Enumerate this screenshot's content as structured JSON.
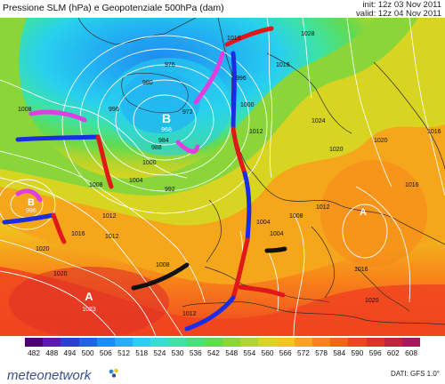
{
  "header": {
    "title": "Pressione SLM (hPa) e Geopotenziale 500hPa (dam)",
    "init": "init: 12z 03 Nov 2011",
    "valid": "valid: 12z 04 Nov 2011"
  },
  "map": {
    "centers": [
      {
        "letter": "B",
        "value": "968",
        "type": "low"
      },
      {
        "letter": "B",
        "value": "996",
        "type": "low"
      },
      {
        "letter": "A",
        "value": "1023",
        "type": "high"
      },
      {
        "letter": "A",
        "value": "",
        "type": "high"
      }
    ],
    "isobar_labels": [
      "1008",
      "1004",
      "1000",
      "996",
      "992",
      "988",
      "984",
      "980",
      "976",
      "972",
      "1012",
      "1016",
      "1020",
      "1024",
      "1028",
      "1008",
      "1012",
      "1016",
      "1020",
      "1016",
      "1012",
      "1008",
      "1004",
      "1000",
      "996",
      "1004",
      "1008",
      "1012",
      "1016",
      "1020",
      "1016",
      "1020",
      "1012",
      "1016",
      "1020",
      "992",
      "996",
      "1000",
      "1004",
      "1008",
      "1012"
    ]
  },
  "scale": {
    "labels": [
      "482",
      "488",
      "494",
      "500",
      "506",
      "512",
      "518",
      "524",
      "530",
      "536",
      "542",
      "548",
      "554",
      "560",
      "566",
      "572",
      "578",
      "584",
      "590",
      "596",
      "602",
      "608"
    ],
    "colors": [
      "#4a006f",
      "#5d1aa8",
      "#2c3fd1",
      "#1f62e8",
      "#1f8cf0",
      "#22b0f2",
      "#28d0ee",
      "#33e0d0",
      "#3ee2a4",
      "#4cdf78",
      "#62da50",
      "#8ad63a",
      "#b2d42c",
      "#d7d422",
      "#f0c81c",
      "#f6a61a",
      "#f8841a",
      "#f6641c",
      "#f04420",
      "#e03026",
      "#c4223a",
      "#a01a5c"
    ]
  },
  "footer": {
    "brand": "meteonetwork",
    "source": "DATI: GFS 1.0°"
  }
}
